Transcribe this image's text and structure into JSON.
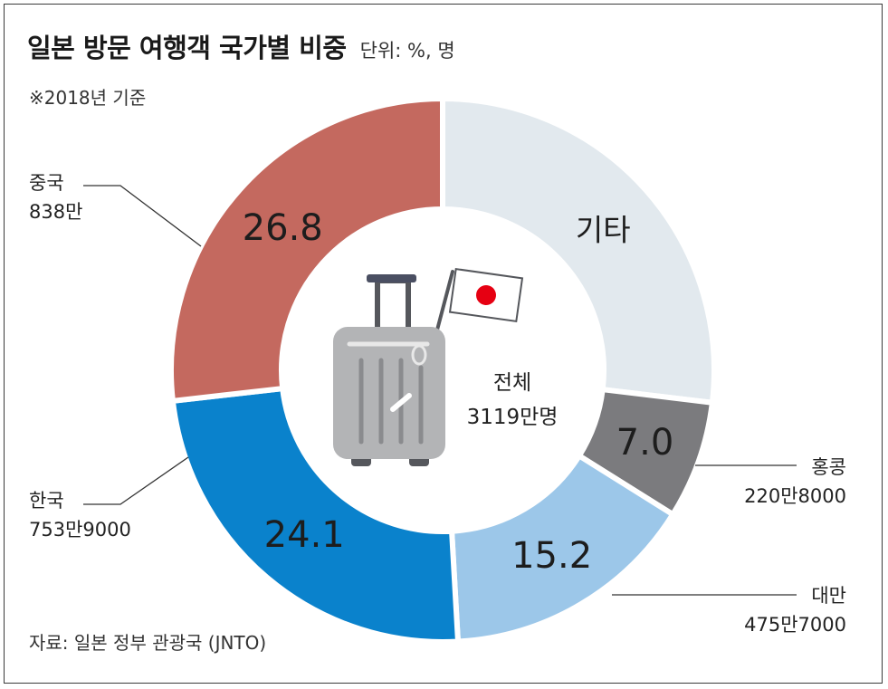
{
  "title": "일본 방문 여행객 국가별 비중",
  "unit": "단위: %, 명",
  "basis": "※2018년 기준",
  "source": "자료: 일본 정부 관광국 (JNTO)",
  "center": {
    "label": "전체",
    "total": "3119만명"
  },
  "colors": {
    "기타": "#e2e9ee",
    "홍콩": "#7b7b7e",
    "대만": "#9cc7e9",
    "한국": "#0a82cc",
    "중국": "#c4695f",
    "suitcase": "#b3b4b6",
    "flag_red": "#e60012"
  },
  "chart_data": {
    "type": "pie",
    "donut": true,
    "start": "12 o'clock, clockwise",
    "slices": [
      {
        "name": "기타",
        "value": 26.9,
        "label": "기타",
        "count": ""
      },
      {
        "name": "홍콩",
        "value": 7.0,
        "label": "7.0",
        "count": "220만8000"
      },
      {
        "name": "대만",
        "value": 15.2,
        "label": "15.2",
        "count": "475만7000"
      },
      {
        "name": "한국",
        "value": 24.1,
        "label": "24.1",
        "count": "753만9000"
      },
      {
        "name": "중국",
        "value": 26.8,
        "label": "26.8",
        "count": "838만"
      }
    ]
  }
}
